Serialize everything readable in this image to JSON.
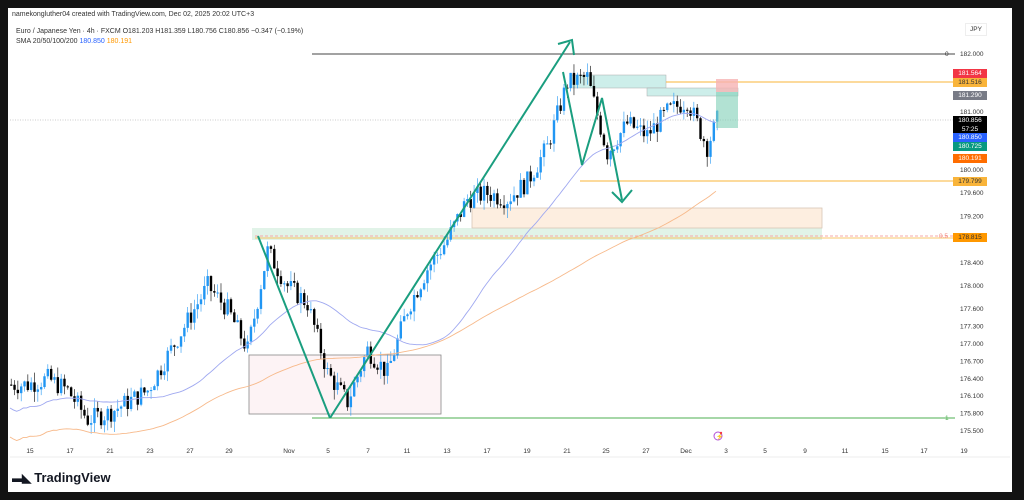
{
  "header": {
    "credit": "namekongluther04 created with TradingView.com, Dec 02, 2025 20:02 UTC+3",
    "symbol_line": "Euro / Japanese Yen · 4h · FXCM  O181.203  H181.359  L180.756  C180.856  −0.347 (−0.19%)",
    "sma_label": "SMA 20/50/100/200",
    "sma_blue": "180.850",
    "sma_orange": "180.191"
  },
  "currency": "JPY",
  "logo_text": "TradingView",
  "price_tags": [
    {
      "value": "181.564",
      "color": "#f23645"
    },
    {
      "value": "181.516",
      "color": "#f9b43a"
    },
    {
      "value": "181.290",
      "color": "#787b86"
    },
    {
      "value": "180.856",
      "sub": "57:25",
      "color": "#000000"
    },
    {
      "value": "180.850",
      "color": "#2962ff"
    },
    {
      "value": "180.725",
      "color": "#089981"
    },
    {
      "value": "180.191",
      "color": "#ff6d00"
    },
    {
      "value": "179.799",
      "color": "#f9b43a"
    },
    {
      "value": "178.815",
      "color": "#ff9800"
    }
  ],
  "fib_labels": {
    "top": "0",
    "mid": "0.5",
    "bottom": "1"
  },
  "chart_data": {
    "type": "candlestick",
    "symbol": "EURJPY",
    "timeframe": "4h",
    "y_ticks": [
      "182.000",
      "181.000",
      "180.000",
      "179.600",
      "179.200",
      "178.400",
      "178.000",
      "177.600",
      "177.300",
      "177.000",
      "176.700",
      "176.400",
      "176.100",
      "175.800",
      "175.500"
    ],
    "x_ticks": [
      "15",
      "17",
      "21",
      "23",
      "27",
      "29",
      "Nov",
      "5",
      "7",
      "11",
      "13",
      "17",
      "19",
      "21",
      "25",
      "27",
      "Dec",
      "3",
      "5",
      "9",
      "11",
      "15",
      "17",
      "19"
    ],
    "ylim": [
      175.4,
      182.3
    ],
    "colors": {
      "up": "#2196f3",
      "down": "#000000",
      "sma_fast": "#9fa8f0",
      "sma_slow": "#f7b98a",
      "arrow": "#1a9e7f"
    },
    "daily_close_estimates": [
      {
        "date": "Oct 14",
        "close": 176.3
      },
      {
        "date": "Oct 15",
        "close": 176.4
      },
      {
        "date": "Oct 16",
        "close": 176.2
      },
      {
        "date": "Oct 17",
        "close": 175.7
      },
      {
        "date": "Oct 20",
        "close": 175.8
      },
      {
        "date": "Oct 21",
        "close": 176.0
      },
      {
        "date": "Oct 22",
        "close": 176.2
      },
      {
        "date": "Oct 23",
        "close": 176.8
      },
      {
        "date": "Oct 24",
        "close": 177.4
      },
      {
        "date": "Oct 27",
        "close": 178.0
      },
      {
        "date": "Oct 28",
        "close": 177.6
      },
      {
        "date": "Oct 29",
        "close": 176.9
      },
      {
        "date": "Oct 30",
        "close": 178.6
      },
      {
        "date": "Oct 31",
        "close": 178.0
      },
      {
        "date": "Nov 3",
        "close": 177.7
      },
      {
        "date": "Nov 4",
        "close": 176.5
      },
      {
        "date": "Nov 5",
        "close": 176.0
      },
      {
        "date": "Nov 6",
        "close": 176.9
      },
      {
        "date": "Nov 7",
        "close": 176.5
      },
      {
        "date": "Nov 10",
        "close": 177.6
      },
      {
        "date": "Nov 11",
        "close": 178.3
      },
      {
        "date": "Nov 12",
        "close": 178.8
      },
      {
        "date": "Nov 13",
        "close": 179.5
      },
      {
        "date": "Nov 14",
        "close": 179.6
      },
      {
        "date": "Nov 17",
        "close": 179.5
      },
      {
        "date": "Nov 18",
        "close": 179.8
      },
      {
        "date": "Nov 19",
        "close": 180.4
      },
      {
        "date": "Nov 20",
        "close": 181.5
      },
      {
        "date": "Nov 21",
        "close": 181.6
      },
      {
        "date": "Nov 24",
        "close": 180.3
      },
      {
        "date": "Nov 25",
        "close": 180.8
      },
      {
        "date": "Nov 26",
        "close": 180.6
      },
      {
        "date": "Nov 27",
        "close": 181.0
      },
      {
        "date": "Nov 28",
        "close": 181.2
      },
      {
        "date": "Dec 1",
        "close": 180.4
      },
      {
        "date": "Dec 2",
        "close": 180.856
      }
    ],
    "levels": [
      182.0,
      181.516,
      179.799,
      178.815,
      175.75
    ]
  }
}
